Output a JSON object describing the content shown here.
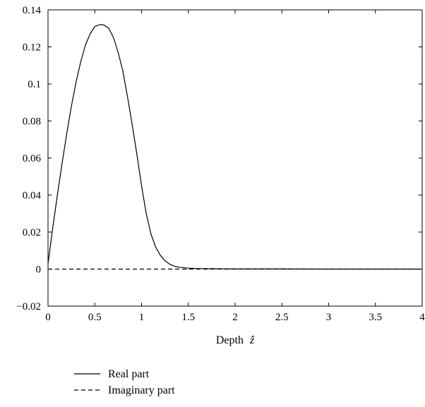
{
  "chart_data": {
    "type": "line",
    "title": "",
    "xlabel": "Depth",
    "xlabel_symbol": "ẑ",
    "ylabel": "",
    "xlim": [
      0,
      4
    ],
    "ylim": [
      -0.02,
      0.14
    ],
    "xticks": [
      0,
      0.5,
      1,
      1.5,
      2,
      2.5,
      3,
      3.5,
      4
    ],
    "xtick_labels": [
      "0",
      "0.5",
      "1",
      "1.5",
      "2",
      "2.5",
      "3",
      "3.5",
      "4"
    ],
    "yticks": [
      -0.02,
      0,
      0.02,
      0.04,
      0.06,
      0.08,
      0.1,
      0.12,
      0.14
    ],
    "ytick_labels": [
      "−0.02",
      "0",
      "0.02",
      "0.04",
      "0.06",
      "0.08",
      "0.1",
      "0.12",
      "0.14"
    ],
    "grid": false,
    "legend_position": "below-left",
    "series": [
      {
        "name": "Real part",
        "style": "solid",
        "color": "#000000",
        "x": [
          0,
          0.05,
          0.1,
          0.15,
          0.2,
          0.25,
          0.3,
          0.35,
          0.4,
          0.45,
          0.5,
          0.55,
          0.58,
          0.6,
          0.65,
          0.7,
          0.75,
          0.8,
          0.85,
          0.9,
          0.95,
          1.0,
          1.05,
          1.1,
          1.15,
          1.2,
          1.25,
          1.3,
          1.35,
          1.4,
          1.5,
          1.6,
          1.8,
          2.0,
          2.5,
          3.0,
          3.5,
          4.0
        ],
        "y": [
          0.003,
          0.022,
          0.04,
          0.057,
          0.073,
          0.088,
          0.101,
          0.112,
          0.121,
          0.127,
          0.131,
          0.132,
          0.132,
          0.1318,
          0.13,
          0.125,
          0.117,
          0.107,
          0.093,
          0.078,
          0.062,
          0.045,
          0.03,
          0.019,
          0.012,
          0.0075,
          0.0045,
          0.0027,
          0.0016,
          0.001,
          0.0005,
          0.0003,
          0.0002,
          0.0001,
          0.0001,
          0,
          0,
          0
        ]
      },
      {
        "name": "Imaginary part",
        "style": "dashed",
        "color": "#000000",
        "x": [
          0,
          4
        ],
        "y": [
          0,
          0
        ]
      }
    ]
  }
}
